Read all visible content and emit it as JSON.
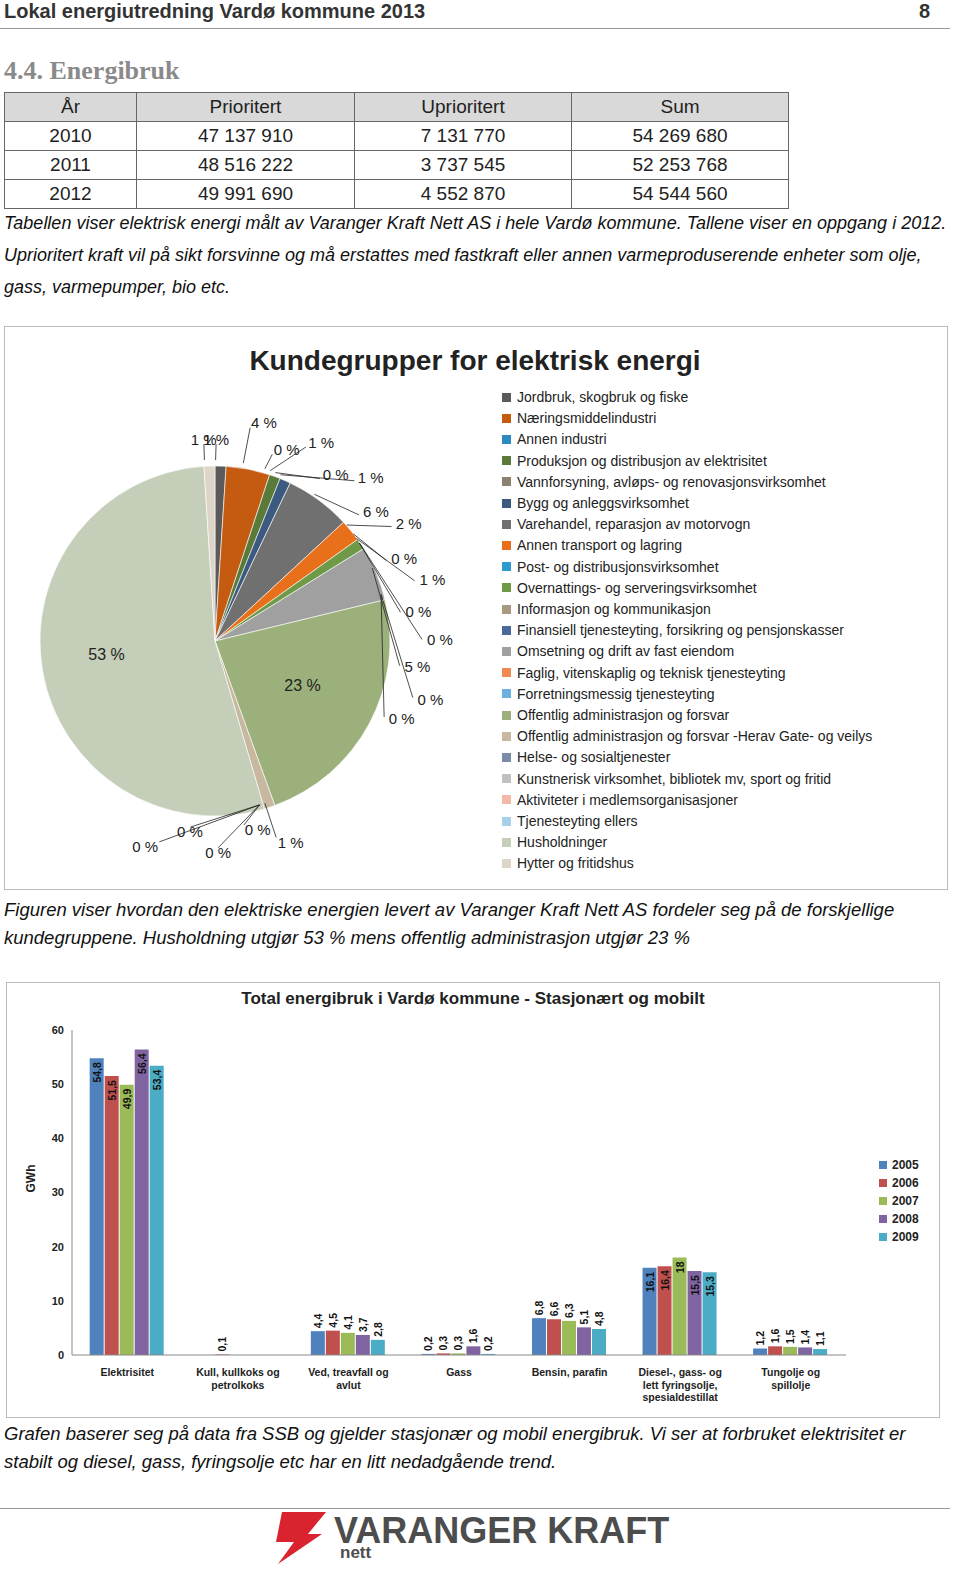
{
  "header": {
    "title": "Lokal energiutredning Vardø kommune 2013",
    "page": "8"
  },
  "section_title": "4.4. Energibruk",
  "table": {
    "columns": [
      "År",
      "Prioritert",
      "Uprioritert",
      "Sum"
    ],
    "rows": [
      [
        "2010",
        "47 137 910",
        "7 131 770",
        "54 269 680"
      ],
      [
        "2011",
        "48 516 222",
        "3 737 545",
        "52 253 768"
      ],
      [
        "2012",
        "49 991 690",
        "4 552 870",
        "54 544 560"
      ]
    ]
  },
  "captions": [
    "Tabellen viser elektrisk energi målt av Varanger Kraft Nett AS i hele Vardø kommune. Tallene viser en oppgang i 2012. Uprioritert kraft vil på sikt forsvinne og må erstattes med fastkraft eller annen varmeproduserende enheter som olje, gass, varmepumper, bio etc.",
    "Figuren viser hvordan den elektriske energien levert av Varanger Kraft Nett AS fordeler seg på de forskjellige kundegruppene. Husholdning utgjør 53 % mens offentlig administrasjon utgjør 23 %",
    "Grafen baserer seg på data fra SSB og gjelder stasjonær og mobil energibruk. Vi ser at forbruket elektrisitet er stabilt og diesel, gass, fyringsolje etc har en litt nedadgående trend."
  ],
  "chart_data": [
    {
      "type": "pie",
      "title": "Kundegrupper for elektrisk energi",
      "categories": [
        "Jordbruk, skogbruk og fiske",
        "Næringsmiddelindustri",
        "Annen industri",
        "Produksjon og distribusjon av elektrisitet",
        "Vannforsyning, avløps- og renovasjonsvirksomhet",
        "Bygg og anleggsvirksomhet",
        "Varehandel, reparasjon av motorvogn",
        "Annen transport og lagring",
        "Post- og distribusjonsvirksomhet",
        "Overnattings- og serveringsvirksomhet",
        "Informasjon og kommunikasjon",
        "Finansiell tjenesteyting, forsikring og pensjonskasser",
        "Omsetning og drift av fast eiendom",
        "Faglig, vitenskaplig og teknisk tjenesteyting",
        "Forretningsmessig tjenesteyting",
        "Offentlig administrasjon og forsvar",
        "Offentlig administrasjon og forsvar -Herav Gate- og veilys",
        "Helse- og sosialtjenester",
        "Kunstnerisk virksomhet, bibliotek mv, sport og fritid",
        "Aktiviteter i medlemsorganisasjoner",
        "Tjenesteyting ellers",
        "Husholdninger",
        "Hytter og fritidshus"
      ],
      "values": [
        1,
        4,
        0,
        1,
        0,
        1,
        6,
        2,
        0,
        1,
        0,
        0,
        5,
        0,
        0,
        23,
        1,
        0,
        0,
        0,
        0,
        53,
        1
      ],
      "value_labels": [
        "1 %",
        "4 %",
        "0 %",
        "1 %",
        "0 %",
        "1 %",
        "6 %",
        "2 %",
        "0 %",
        "1 %",
        "0 %",
        "0 %",
        "5 %",
        "0 %",
        "0 %",
        "23 %",
        "1 %",
        "0 %",
        "0 %",
        "0 %",
        "0 %",
        "53 %",
        "1 %"
      ],
      "colors": [
        "#5a5a5a",
        "#c55a11",
        "#2e8bc0",
        "#5a7a3a",
        "#8c8070",
        "#3c5a80",
        "#707070",
        "#e8701a",
        "#2e9ad0",
        "#6e9a48",
        "#a89a80",
        "#4a6a9a",
        "#a0a0a0",
        "#f08a50",
        "#6ab0e0",
        "#9bb07a",
        "#c8b8a0",
        "#7a8ca8",
        "#c0c0c0",
        "#f4b8a8",
        "#a8d0e8",
        "#c4ceb8",
        "#ddd5c8"
      ],
      "data_labels": true,
      "legend": "right"
    },
    {
      "type": "bar",
      "title": "Total energibruk i Vardø kommune - Stasjonært og mobilt",
      "y_label": "GWh",
      "categories": [
        "Elektrisitet",
        "Kull, kullkoks og petrolkoks",
        "Ved, treavfall og avlut",
        "Gass",
        "Bensin, parafin",
        "Diesel-, gass- og lett fyringsolje, spesialdestillat",
        "Tungolje og spillolje"
      ],
      "series": [
        {
          "name": "2005",
          "color": "#4f81bd",
          "values": [
            54.8,
            0,
            4.4,
            0.2,
            6.8,
            16.1,
            1.2
          ],
          "value_labels": [
            "54,8",
            "0",
            "4,4",
            "0,2",
            "6,8",
            "16,1",
            "1,2"
          ]
        },
        {
          "name": "2006",
          "color": "#c0504d",
          "values": [
            51.5,
            0.1,
            4.5,
            0.3,
            6.6,
            16.4,
            1.6
          ],
          "value_labels": [
            "51,5",
            "0,1",
            "4,5",
            "0,3",
            "6,6",
            "16,4",
            "1,6"
          ]
        },
        {
          "name": "2007",
          "color": "#9bbb59",
          "values": [
            49.9,
            0,
            4.1,
            0.3,
            6.3,
            18,
            1.5
          ],
          "value_labels": [
            "49,9",
            "0",
            "4,1",
            "0,3",
            "6,3",
            "18",
            "1,5"
          ]
        },
        {
          "name": "2008",
          "color": "#8064a2",
          "values": [
            56.4,
            0,
            3.7,
            1.6,
            5.1,
            15.5,
            1.4
          ],
          "value_labels": [
            "56,4",
            "0",
            "3,7",
            "1,6",
            "5,1",
            "15,5",
            "1,4"
          ]
        },
        {
          "name": "2009",
          "color": "#4bacc6",
          "values": [
            53.4,
            0,
            2.8,
            0.2,
            4.8,
            15.3,
            1.1
          ],
          "value_labels": [
            "53,4",
            "0",
            "2,8",
            "0,2",
            "4,8",
            "15,3",
            "1,1"
          ]
        }
      ],
      "ylim": [
        0,
        60
      ],
      "yticks": [
        0,
        10,
        20,
        30,
        40,
        50,
        60
      ],
      "grid": false,
      "legend": "right",
      "data_labels": true
    }
  ],
  "footer": {
    "logo": "VARANGER KRAFT",
    "logo_subtitle": "nett"
  }
}
